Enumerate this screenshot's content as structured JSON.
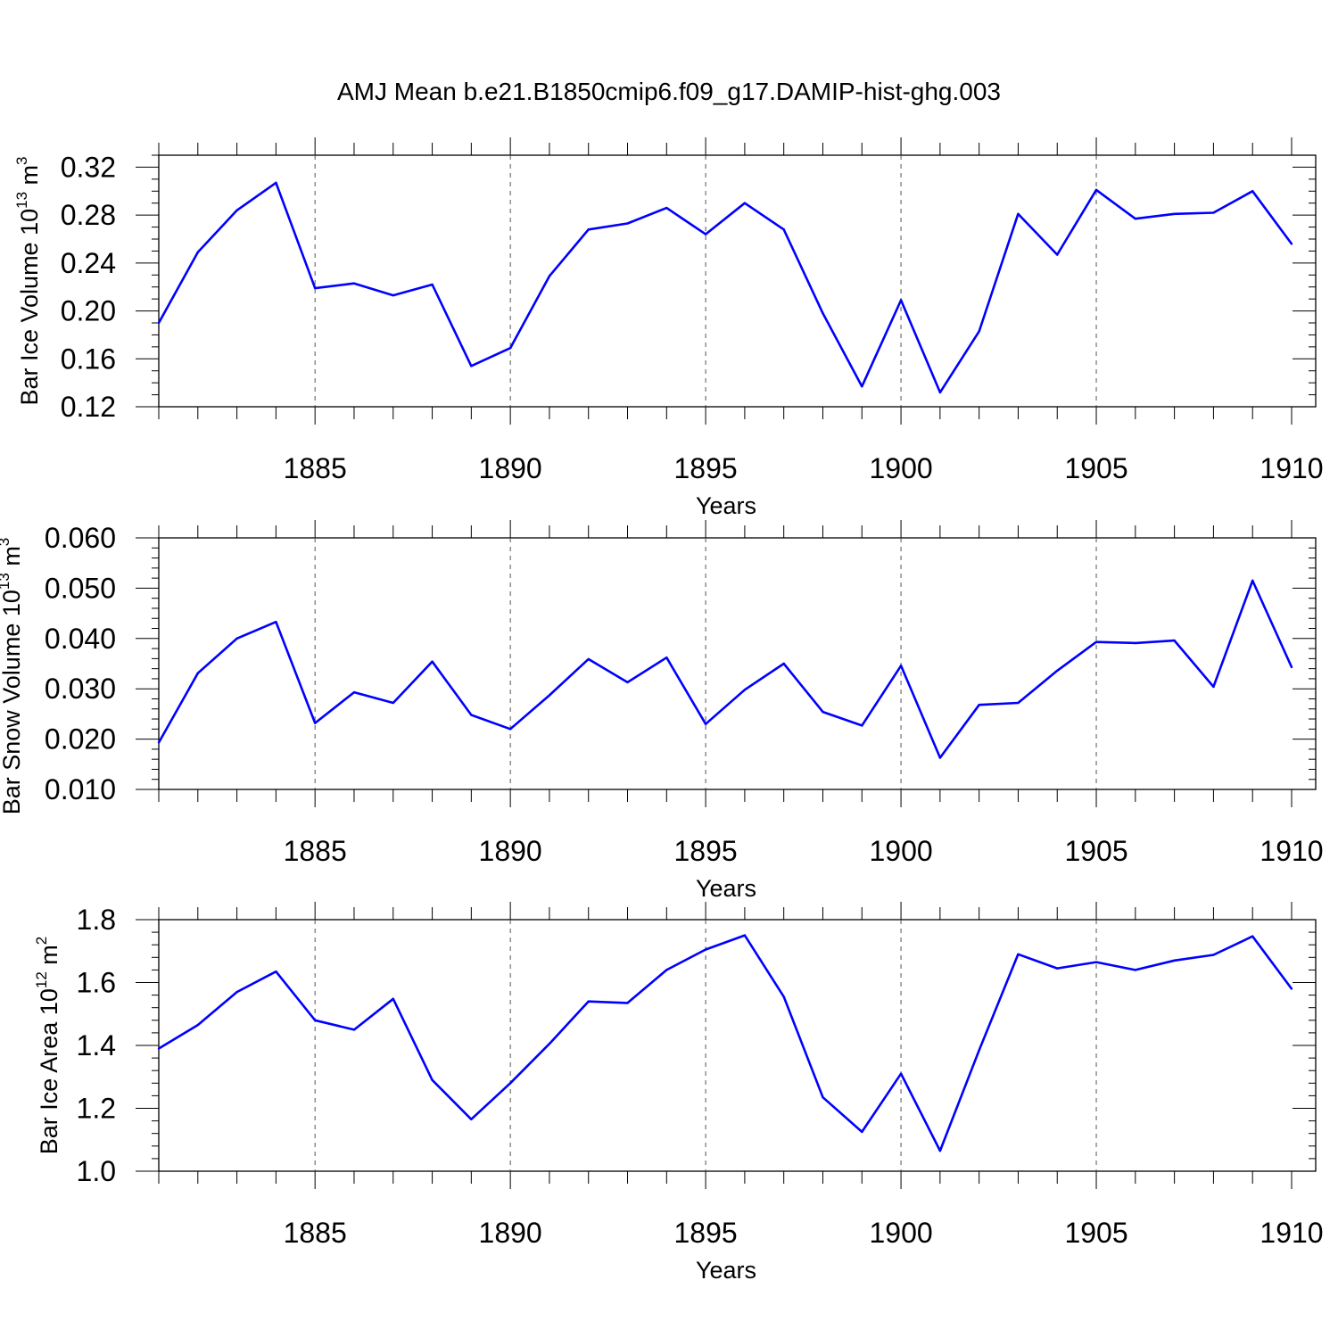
{
  "chart_data": {
    "title": "AMJ Mean b.e21.B1850cmip6.f09_g17.DAMIP-hist-ghg.003",
    "type": "line",
    "line_color": "#0000ff",
    "grid_color": "#555555",
    "panels": [
      {
        "type": "line",
        "ylabel": "Bar Ice Volume",
        "unit_base": "10",
        "unit_exp": "13",
        "unit_symbol": "m",
        "unit_symbol_exp": "3",
        "xlabel": "Years",
        "xlim": [
          1881,
          1910
        ],
        "ylim": [
          0.12,
          0.33
        ],
        "yticks": [
          0.12,
          0.16,
          0.2,
          0.24,
          0.28,
          0.32
        ],
        "ytick_labels": [
          "0.12",
          "0.16",
          "0.20",
          "0.24",
          "0.28",
          "0.32"
        ],
        "yminor_step": 0.01,
        "xticks": [
          1885,
          1890,
          1895,
          1900,
          1905,
          1910
        ],
        "xtick_labels": [
          "1885",
          "1890",
          "1895",
          "1900",
          "1905",
          "1910"
        ],
        "x": [
          1881,
          1882,
          1883,
          1884,
          1885,
          1886,
          1887,
          1888,
          1889,
          1890,
          1891,
          1892,
          1893,
          1894,
          1895,
          1896,
          1897,
          1898,
          1899,
          1900,
          1901,
          1902,
          1903,
          1904,
          1905,
          1906,
          1907,
          1908,
          1909,
          1910
        ],
        "values": [
          0.19,
          0.249,
          0.284,
          0.307,
          0.219,
          0.223,
          0.213,
          0.222,
          0.154,
          0.169,
          0.229,
          0.268,
          0.273,
          0.286,
          0.264,
          0.29,
          0.268,
          0.198,
          0.137,
          0.209,
          0.132,
          0.183,
          0.281,
          0.247,
          0.301,
          0.277,
          0.281,
          0.282,
          0.3,
          0.256
        ]
      },
      {
        "type": "line",
        "ylabel": "Bar Snow Volume",
        "unit_base": "10",
        "unit_exp": "13",
        "unit_symbol": "m",
        "unit_symbol_exp": "3",
        "xlabel": "Years",
        "xlim": [
          1881,
          1910
        ],
        "ylim": [
          0.01,
          0.06
        ],
        "yticks": [
          0.01,
          0.02,
          0.03,
          0.04,
          0.05,
          0.06
        ],
        "ytick_labels": [
          "0.010",
          "0.020",
          "0.030",
          "0.040",
          "0.050",
          "0.060"
        ],
        "yminor_step": 0.002,
        "xticks": [
          1885,
          1890,
          1895,
          1900,
          1905,
          1910
        ],
        "xtick_labels": [
          "1885",
          "1890",
          "1895",
          "1900",
          "1905",
          "1910"
        ],
        "x": [
          1881,
          1882,
          1883,
          1884,
          1885,
          1886,
          1887,
          1888,
          1889,
          1890,
          1891,
          1892,
          1893,
          1894,
          1895,
          1896,
          1897,
          1898,
          1899,
          1900,
          1901,
          1902,
          1903,
          1904,
          1905,
          1906,
          1907,
          1908,
          1909,
          1910
        ],
        "values": [
          0.0193,
          0.0331,
          0.04,
          0.0433,
          0.0232,
          0.0293,
          0.0272,
          0.0354,
          0.0248,
          0.022,
          0.0287,
          0.0359,
          0.0313,
          0.0362,
          0.023,
          0.0298,
          0.035,
          0.0254,
          0.0227,
          0.0346,
          0.0163,
          0.0268,
          0.0272,
          0.0336,
          0.0393,
          0.0391,
          0.0396,
          0.0304,
          0.0515,
          0.0343
        ]
      },
      {
        "type": "line",
        "ylabel": "Bar Ice Area",
        "unit_base": "10",
        "unit_exp": "12",
        "unit_symbol": "m",
        "unit_symbol_exp": "2",
        "xlabel": "Years",
        "xlim": [
          1881,
          1910
        ],
        "ylim": [
          1.0,
          1.8
        ],
        "yticks": [
          1.0,
          1.2,
          1.4,
          1.6,
          1.8
        ],
        "ytick_labels": [
          "1.0",
          "1.2",
          "1.4",
          "1.6",
          "1.8"
        ],
        "yminor_step": 0.04,
        "xticks": [
          1885,
          1890,
          1895,
          1900,
          1905,
          1910
        ],
        "xtick_labels": [
          "1885",
          "1890",
          "1895",
          "1900",
          "1905",
          "1910"
        ],
        "x": [
          1881,
          1882,
          1883,
          1884,
          1885,
          1886,
          1887,
          1888,
          1889,
          1890,
          1891,
          1892,
          1893,
          1894,
          1895,
          1896,
          1897,
          1898,
          1899,
          1900,
          1901,
          1902,
          1903,
          1904,
          1905,
          1906,
          1907,
          1908,
          1909,
          1910
        ],
        "values": [
          1.39,
          1.465,
          1.57,
          1.635,
          1.48,
          1.45,
          1.548,
          1.29,
          1.165,
          1.28,
          1.405,
          1.54,
          1.535,
          1.64,
          1.705,
          1.75,
          1.555,
          1.235,
          1.125,
          1.31,
          1.065,
          1.385,
          1.69,
          1.645,
          1.665,
          1.64,
          1.67,
          1.688,
          1.747,
          1.58
        ]
      }
    ]
  }
}
